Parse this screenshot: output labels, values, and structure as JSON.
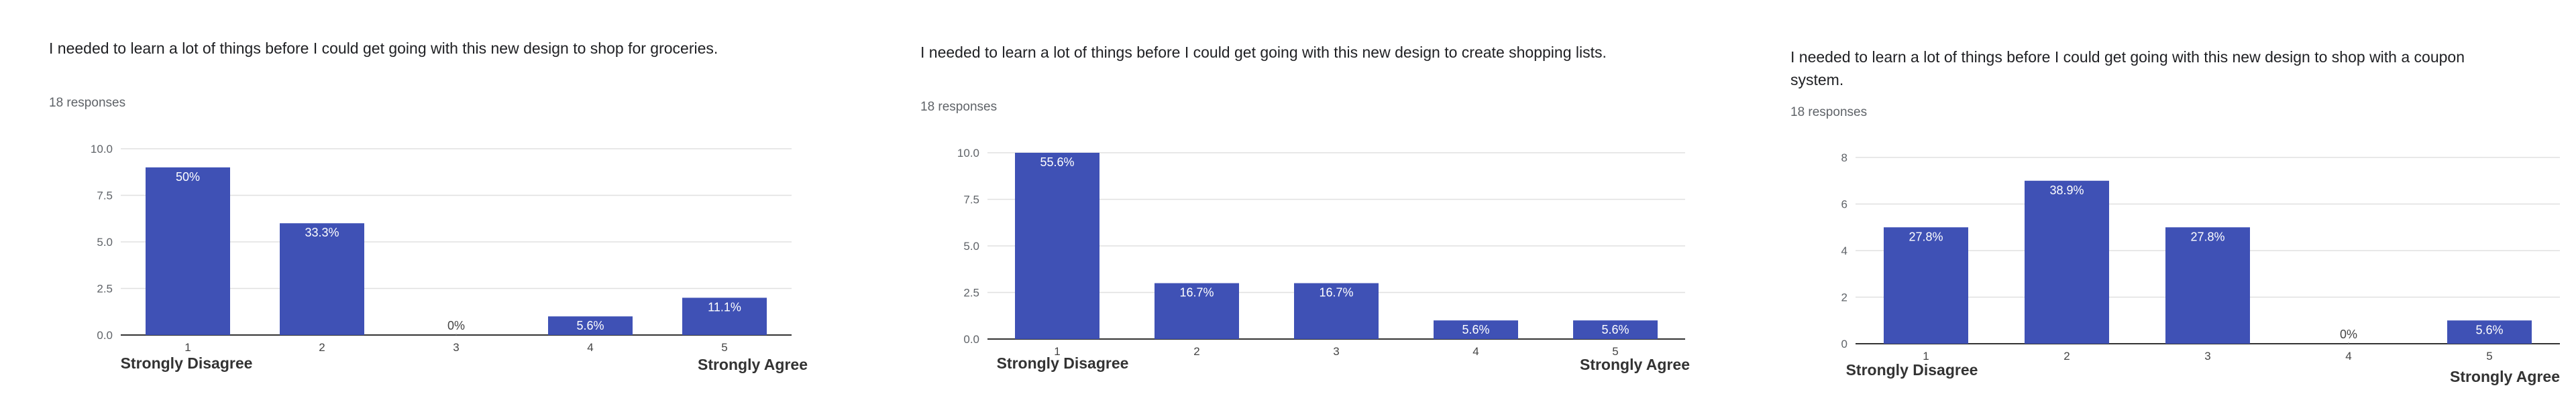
{
  "questions": [
    {
      "title": "I needed to learn a lot of things before I could get going with this new design to shop for groceries.",
      "responses": "18 responses"
    },
    {
      "title": "I needed to learn a lot of things before I could get going with this new design to create shopping lists.",
      "responses": "18 responses"
    },
    {
      "title": "I needed to learn a lot of things before I could get going with this new design to shop with a coupon system.",
      "responses": "18 responses"
    }
  ],
  "colors": {
    "bar": "#3f51b5",
    "grid": "#e0e0e0",
    "axis": "#333333"
  },
  "chart_data": [
    {
      "type": "bar",
      "categories": [
        "1",
        "2",
        "3",
        "4",
        "5"
      ],
      "values": [
        9,
        6,
        0,
        1,
        2
      ],
      "data_labels": [
        "50%",
        "33.3%",
        "0%",
        "5.6%",
        "11.1%"
      ],
      "yticks": [
        "0.0",
        "2.5",
        "5.0",
        "7.5",
        "10.0"
      ],
      "ylim": [
        0,
        10
      ],
      "anchor_low": "Strongly Disagree",
      "anchor_high": "Strongly Agree",
      "grid": true
    },
    {
      "type": "bar",
      "categories": [
        "1",
        "2",
        "3",
        "4",
        "5"
      ],
      "values": [
        10,
        3,
        3,
        1,
        1
      ],
      "data_labels": [
        "55.6%",
        "16.7%",
        "16.7%",
        "5.6%",
        "5.6%"
      ],
      "yticks": [
        "0.0",
        "2.5",
        "5.0",
        "7.5",
        "10.0"
      ],
      "ylim": [
        0,
        10
      ],
      "anchor_low": "Strongly Disagree",
      "anchor_high": "Strongly Agree",
      "grid": true
    },
    {
      "type": "bar",
      "categories": [
        "1",
        "2",
        "3",
        "4",
        "5"
      ],
      "values": [
        5,
        7,
        5,
        0,
        1
      ],
      "data_labels": [
        "27.8%",
        "38.9%",
        "27.8%",
        "0%",
        "5.6%"
      ],
      "yticks": [
        "0",
        "2",
        "4",
        "6",
        "8"
      ],
      "ylim": [
        0,
        8
      ],
      "anchor_low": "Strongly Disagree",
      "anchor_high": "Strongly Agree",
      "grid": true
    }
  ]
}
